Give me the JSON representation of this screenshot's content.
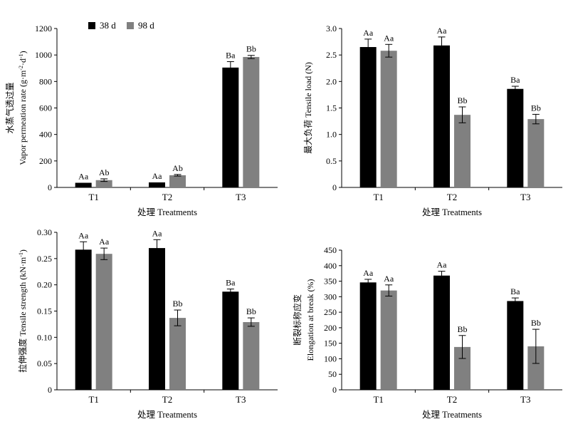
{
  "legend": [
    {
      "label": "38 d",
      "color": "#000000"
    },
    {
      "label": "98 d",
      "color": "#808080"
    }
  ],
  "chart_data": [
    {
      "type": "bar",
      "categories": [
        "T1",
        "T2",
        "T3"
      ],
      "xlabel": "处理 Treatments",
      "ylabel_zh": "水蒸气透过量",
      "ylabel_en": "Vapor permeation rate (g·m",
      "ylabel_units": [
        {
          "t": "Vapor permeation rate (g·m"
        },
        {
          "t": "-2",
          "sup": true
        },
        {
          "t": "·d"
        },
        {
          "t": "-1",
          "sup": true
        },
        {
          "t": ")"
        }
      ],
      "ylim": [
        0,
        1200
      ],
      "yticks": [
        0,
        200,
        400,
        600,
        800,
        1000,
        1200
      ],
      "tick_decimals": 0,
      "series": [
        {
          "name": "38 d",
          "values": [
            35,
            38,
            905
          ],
          "errors": [
            0,
            0,
            45
          ],
          "labels": [
            "Aa",
            "Aa",
            "Ba"
          ]
        },
        {
          "name": "98 d",
          "values": [
            55,
            92,
            985
          ],
          "errors": [
            10,
            6,
            12
          ],
          "labels": [
            "Ab",
            "Ab",
            "Bb"
          ]
        }
      ]
    },
    {
      "type": "bar",
      "categories": [
        "T1",
        "T2",
        "T3"
      ],
      "xlabel": "处理 Treatments",
      "ylabel_zh": "最大负荷",
      "ylabel_en": "Tensile load (N)",
      "ylabel_units": [
        {
          "t": "最大负荷 Tensile load (N)"
        }
      ],
      "ylim": [
        0,
        3.0
      ],
      "yticks": [
        0,
        0.5,
        1.0,
        1.5,
        2.0,
        2.5,
        3.0
      ],
      "tick_decimals": 1,
      "series": [
        {
          "name": "38 d",
          "values": [
            2.65,
            2.68,
            1.86
          ],
          "errors": [
            0.15,
            0.16,
            0.05
          ],
          "labels": [
            "Aa",
            "Aa",
            "Ba"
          ]
        },
        {
          "name": "98 d",
          "values": [
            2.58,
            1.37,
            1.29
          ],
          "errors": [
            0.12,
            0.15,
            0.09
          ],
          "labels": [
            "Aa",
            "Bb",
            "Bb"
          ]
        }
      ]
    },
    {
      "type": "bar",
      "categories": [
        "T1",
        "T2",
        "T3"
      ],
      "xlabel": "处理 Treatments",
      "ylabel_zh": "拉伸强度",
      "ylabel_en": "Tensile strength (kN·m",
      "ylabel_units": [
        {
          "t": "拉伸强度 Tensile strength (kN·m"
        },
        {
          "t": "-1",
          "sup": true
        },
        {
          "t": ")"
        }
      ],
      "ylim": [
        0,
        0.3
      ],
      "yticks": [
        0,
        0.05,
        0.1,
        0.15,
        0.2,
        0.25,
        0.3
      ],
      "tick_decimals": 2,
      "series": [
        {
          "name": "38 d",
          "values": [
            0.267,
            0.27,
            0.187
          ],
          "errors": [
            0.015,
            0.016,
            0.005
          ],
          "labels": [
            "Aa",
            "Aa",
            "Ba"
          ]
        },
        {
          "name": "98 d",
          "values": [
            0.259,
            0.137,
            0.129
          ],
          "errors": [
            0.011,
            0.015,
            0.008
          ],
          "labels": [
            "Aa",
            "Bb",
            "Bb"
          ]
        }
      ]
    },
    {
      "type": "bar",
      "categories": [
        "T1",
        "T2",
        "T3"
      ],
      "xlabel": "处理 Treatments",
      "ylabel_zh": "断裂标称应变",
      "ylabel_en": "Elongation at break (%)",
      "ylabel_units": [
        {
          "t": "Elongation at break (%)"
        }
      ],
      "ylim": [
        0,
        450
      ],
      "yticks": [
        0,
        50,
        100,
        150,
        200,
        250,
        300,
        350,
        400,
        450
      ],
      "tick_decimals": 0,
      "series": [
        {
          "name": "38 d",
          "values": [
            346,
            368,
            286
          ],
          "errors": [
            10,
            14,
            10
          ],
          "labels": [
            "Aa",
            "Aa",
            "Ba"
          ]
        },
        {
          "name": "98 d",
          "values": [
            320,
            138,
            140
          ],
          "errors": [
            18,
            37,
            55
          ],
          "labels": [
            "Aa",
            "Bb",
            "Bb"
          ]
        }
      ]
    }
  ]
}
